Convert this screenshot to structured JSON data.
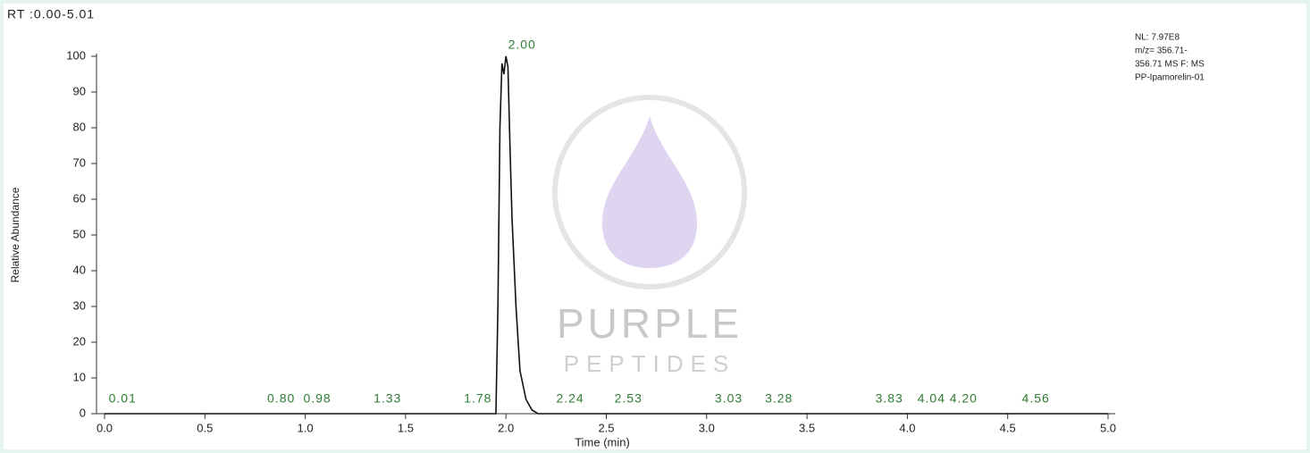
{
  "chart_data": {
    "type": "line",
    "title": "RT :0.00-5.01",
    "info": [
      "NL: 7.97E8",
      "m/z= 356.71-",
      "356.71 MS  F: MS",
      "PP-Ipamorelin-01"
    ],
    "watermark": [
      "PURPLE",
      "PEPTIDES"
    ],
    "x_label": "Time (min)",
    "y_label": "Relative Abundance",
    "color": "#111111",
    "label_color": "#2e7d32",
    "x": [
      0.0,
      0.5,
      1.0,
      1.5,
      1.9,
      1.95,
      1.96,
      1.97,
      1.98,
      1.99,
      2.0,
      2.01,
      2.02,
      2.03,
      2.05,
      2.07,
      2.1,
      2.13,
      2.16,
      2.5,
      3.0,
      3.5,
      4.0,
      4.5,
      5.0
    ],
    "values": [
      0,
      0,
      0,
      0,
      0,
      0,
      30,
      80,
      98,
      95,
      100,
      97,
      75,
      55,
      30,
      12,
      4,
      1,
      0,
      0,
      0,
      0,
      0,
      0,
      0
    ],
    "peak_labels": [
      {
        "value": 2.0,
        "label": "2.00",
        "y": 100
      },
      {
        "value": 0.01,
        "label": "0.01",
        "y": 1
      },
      {
        "value": 0.8,
        "label": "0.80",
        "y": 1
      },
      {
        "value": 0.98,
        "label": "0.98",
        "y": 1
      },
      {
        "value": 1.33,
        "label": "1.33",
        "y": 1
      },
      {
        "value": 1.78,
        "label": "1.78",
        "y": 1
      },
      {
        "value": 2.24,
        "label": "2.24",
        "y": 1
      },
      {
        "value": 2.53,
        "label": "2.53",
        "y": 1
      },
      {
        "value": 3.03,
        "label": "3.03",
        "y": 1
      },
      {
        "value": 3.28,
        "label": "3.28",
        "y": 1
      },
      {
        "value": 3.83,
        "label": "3.83",
        "y": 1
      },
      {
        "value": 4.04,
        "label": "4.04",
        "y": 1
      },
      {
        "value": 4.2,
        "label": "4.20",
        "y": 1
      },
      {
        "value": 4.56,
        "label": "4.56",
        "y": 1
      }
    ],
    "xlim": [
      0,
      5
    ],
    "ylim": [
      0,
      100
    ],
    "xticks": [
      {
        "value": 0,
        "label": "0.0"
      },
      0.5,
      {
        "value": 1,
        "label": "1.0"
      },
      1.5,
      {
        "value": 2,
        "label": "2.0"
      },
      2.5,
      {
        "value": 3,
        "label": "3.0"
      },
      3.5,
      {
        "value": 4,
        "label": "4.0"
      },
      4.5,
      {
        "value": 5,
        "label": "5.0"
      }
    ],
    "yticks": [
      0,
      10,
      20,
      30,
      40,
      50,
      60,
      70,
      80,
      90,
      100
    ]
  }
}
